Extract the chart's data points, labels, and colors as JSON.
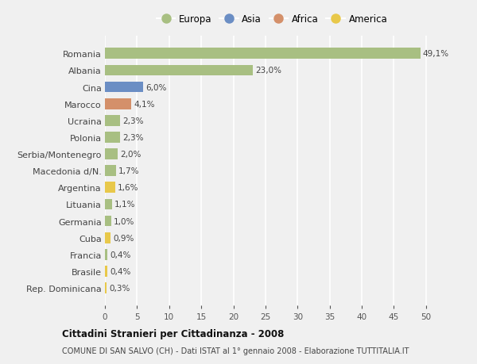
{
  "countries": [
    "Romania",
    "Albania",
    "Cina",
    "Marocco",
    "Ucraina",
    "Polonia",
    "Serbia/Montenegro",
    "Macedonia d/N.",
    "Argentina",
    "Lituania",
    "Germania",
    "Cuba",
    "Francia",
    "Brasile",
    "Rep. Dominicana"
  ],
  "values": [
    49.1,
    23.0,
    6.0,
    4.1,
    2.3,
    2.3,
    2.0,
    1.7,
    1.6,
    1.1,
    1.0,
    0.9,
    0.4,
    0.4,
    0.3
  ],
  "continents": [
    "Europa",
    "Europa",
    "Asia",
    "Africa",
    "Europa",
    "Europa",
    "Europa",
    "Europa",
    "America",
    "Europa",
    "Europa",
    "America",
    "Europa",
    "America",
    "America"
  ],
  "colors": {
    "Europa": "#a8bf82",
    "Asia": "#6b8ec4",
    "Africa": "#d4906a",
    "America": "#e8c84a"
  },
  "title": "Cittadini Stranieri per Cittadinanza - 2008",
  "subtitle": "COMUNE DI SAN SALVO (CH) - Dati ISTAT al 1° gennaio 2008 - Elaborazione TUTTITALIA.IT",
  "xlim": [
    0,
    52
  ],
  "xticks": [
    0,
    5,
    10,
    15,
    20,
    25,
    30,
    35,
    40,
    45,
    50
  ],
  "background_color": "#f0f0f0",
  "grid_color": "#ffffff",
  "bar_height": 0.65,
  "legend_order": [
    "Europa",
    "Asia",
    "Africa",
    "America"
  ]
}
